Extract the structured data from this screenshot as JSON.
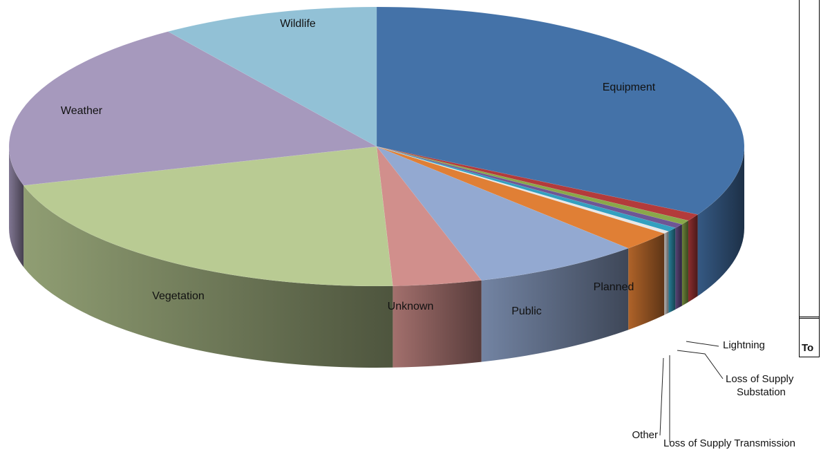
{
  "chart_data": {
    "type": "pie",
    "style": "3d",
    "slices": [
      {
        "label": "Equipment",
        "value": 33.1,
        "color": "#4472A8"
      },
      {
        "label": "",
        "value": 0.8,
        "color": "#B33B3B"
      },
      {
        "label": "Lightning",
        "value": 0.5,
        "color": "#8AA84A"
      },
      {
        "label": "Loss of Supply Substation",
        "value": 0.5,
        "color": "#6E5695"
      },
      {
        "label": "Loss of Supply Transmission",
        "value": 0.5,
        "color": "#33A0C0"
      },
      {
        "label": "Other",
        "value": 0.3,
        "color": "#E7E7E7"
      },
      {
        "label": "Planned",
        "value": 2.3,
        "color": "#E07F35"
      },
      {
        "label": "Public",
        "value": 7.4,
        "color": "#93A9D1"
      },
      {
        "label": "Unknown",
        "value": 3.9,
        "color": "#D18F8C"
      },
      {
        "label": "Vegetation",
        "value": 21.2,
        "color": "#B9CB93"
      },
      {
        "label": "Weather",
        "value": 19.9,
        "color": "#A699BD"
      },
      {
        "label": "Wildlife",
        "value": 9.6,
        "color": "#92C1D6"
      }
    ]
  },
  "legend_fragment": {
    "text": "To"
  }
}
